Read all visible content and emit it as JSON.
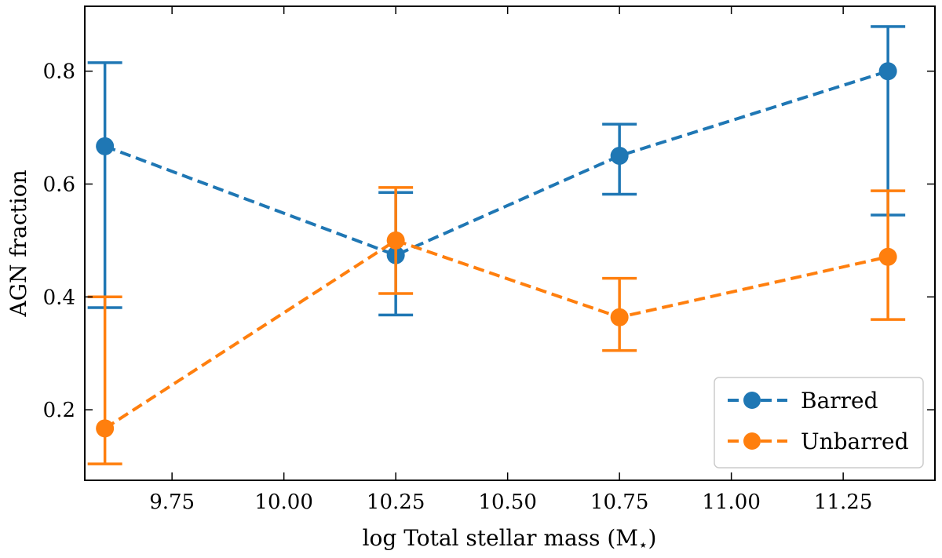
{
  "chart_data": {
    "type": "line",
    "title": "",
    "xlabel": "log Total stellar mass (M",
    "xlabel_subscript": "⋆",
    "xlabel_close": ")",
    "ylabel": "AGN fraction",
    "xlim": [
      9.555,
      11.455
    ],
    "ylim": [
      0.075,
      0.915
    ],
    "xticks": [
      9.75,
      10.0,
      10.25,
      10.5,
      10.75,
      11.0,
      11.25
    ],
    "xtick_labels": [
      "9.75",
      "10.00",
      "10.25",
      "10.50",
      "10.75",
      "11.00",
      "11.25"
    ],
    "yticks": [
      0.2,
      0.4,
      0.6,
      0.8
    ],
    "ytick_labels": [
      "0.2",
      "0.4",
      "0.6",
      "0.8"
    ],
    "legend_position": "bottom-right",
    "series": [
      {
        "name": "Barred",
        "color": "#1f77b4",
        "x": [
          9.6,
          10.25,
          10.75,
          11.35
        ],
        "y": [
          0.667,
          0.474,
          0.65,
          0.8
        ],
        "err_low": [
          0.381,
          0.368,
          0.582,
          0.545
        ],
        "err_high": [
          0.815,
          0.585,
          0.706,
          0.879
        ]
      },
      {
        "name": "Unbarred",
        "color": "#ff7f0e",
        "x": [
          9.6,
          10.25,
          10.75,
          11.35
        ],
        "y": [
          0.167,
          0.5,
          0.364,
          0.471
        ],
        "err_low": [
          0.104,
          0.406,
          0.305,
          0.36
        ],
        "err_high": [
          0.4,
          0.594,
          0.433,
          0.588
        ]
      }
    ]
  }
}
